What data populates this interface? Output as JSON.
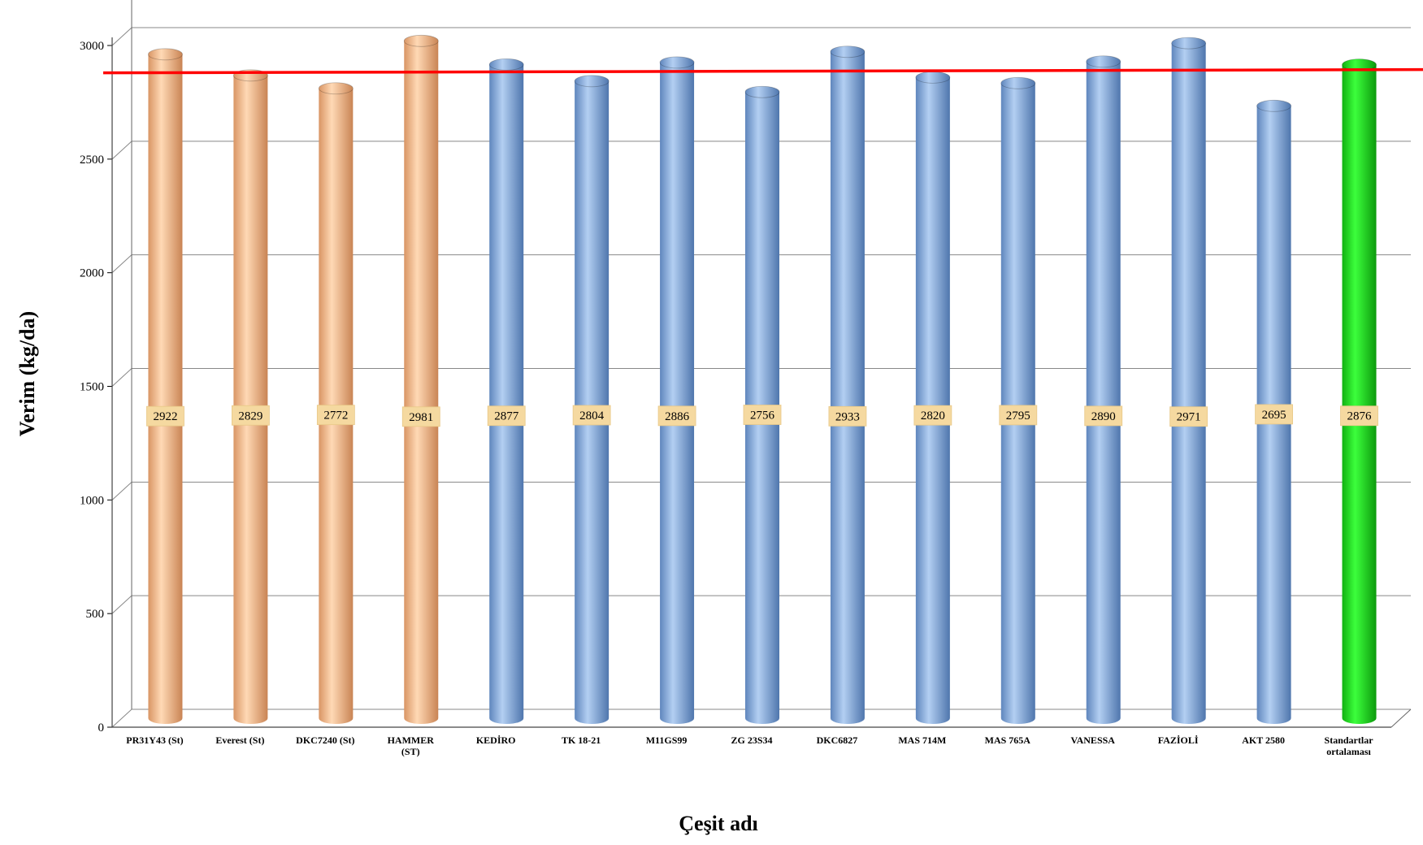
{
  "chart_data": {
    "type": "bar",
    "title": "",
    "xlabel": "Çeşit adı",
    "ylabel": "Verim (kg/da)",
    "ylim": [
      0,
      3000
    ],
    "yticks": [
      0,
      500,
      1000,
      1500,
      2000,
      2500,
      3000
    ],
    "grid": true,
    "reference_line": {
      "value": 2876,
      "color": "#ff0000"
    },
    "categories": [
      [
        "PR31Y43 (St)"
      ],
      [
        "Everest (St)"
      ],
      [
        "DKC7240 (St)"
      ],
      [
        "HAMMER",
        "(ST)"
      ],
      [
        "KEDİRO"
      ],
      [
        "TK 18-21"
      ],
      [
        "M11GS99"
      ],
      [
        "ZG 23S34"
      ],
      [
        "DKC6827"
      ],
      [
        "MAS 714M"
      ],
      [
        "MAS 765A"
      ],
      [
        "VANESSA"
      ],
      [
        "FAZİOLİ"
      ],
      [
        "AKT 2580"
      ],
      [
        "Standartlar",
        "ortalaması"
      ]
    ],
    "values": [
      2922,
      2829,
      2772,
      2981,
      2877,
      2804,
      2886,
      2756,
      2933,
      2820,
      2795,
      2890,
      2971,
      2695,
      2876
    ],
    "bar_groups": [
      "standard",
      "standard",
      "standard",
      "standard",
      "candidate",
      "candidate",
      "candidate",
      "candidate",
      "candidate",
      "candidate",
      "candidate",
      "candidate",
      "candidate",
      "candidate",
      "average"
    ],
    "colors": {
      "standard": "#f9be8d",
      "candidate": "#8fb4e3",
      "average": "#1ee81e",
      "grid": "#888888",
      "reference": "#ff0000",
      "label_box": "#f5d9a0"
    }
  }
}
